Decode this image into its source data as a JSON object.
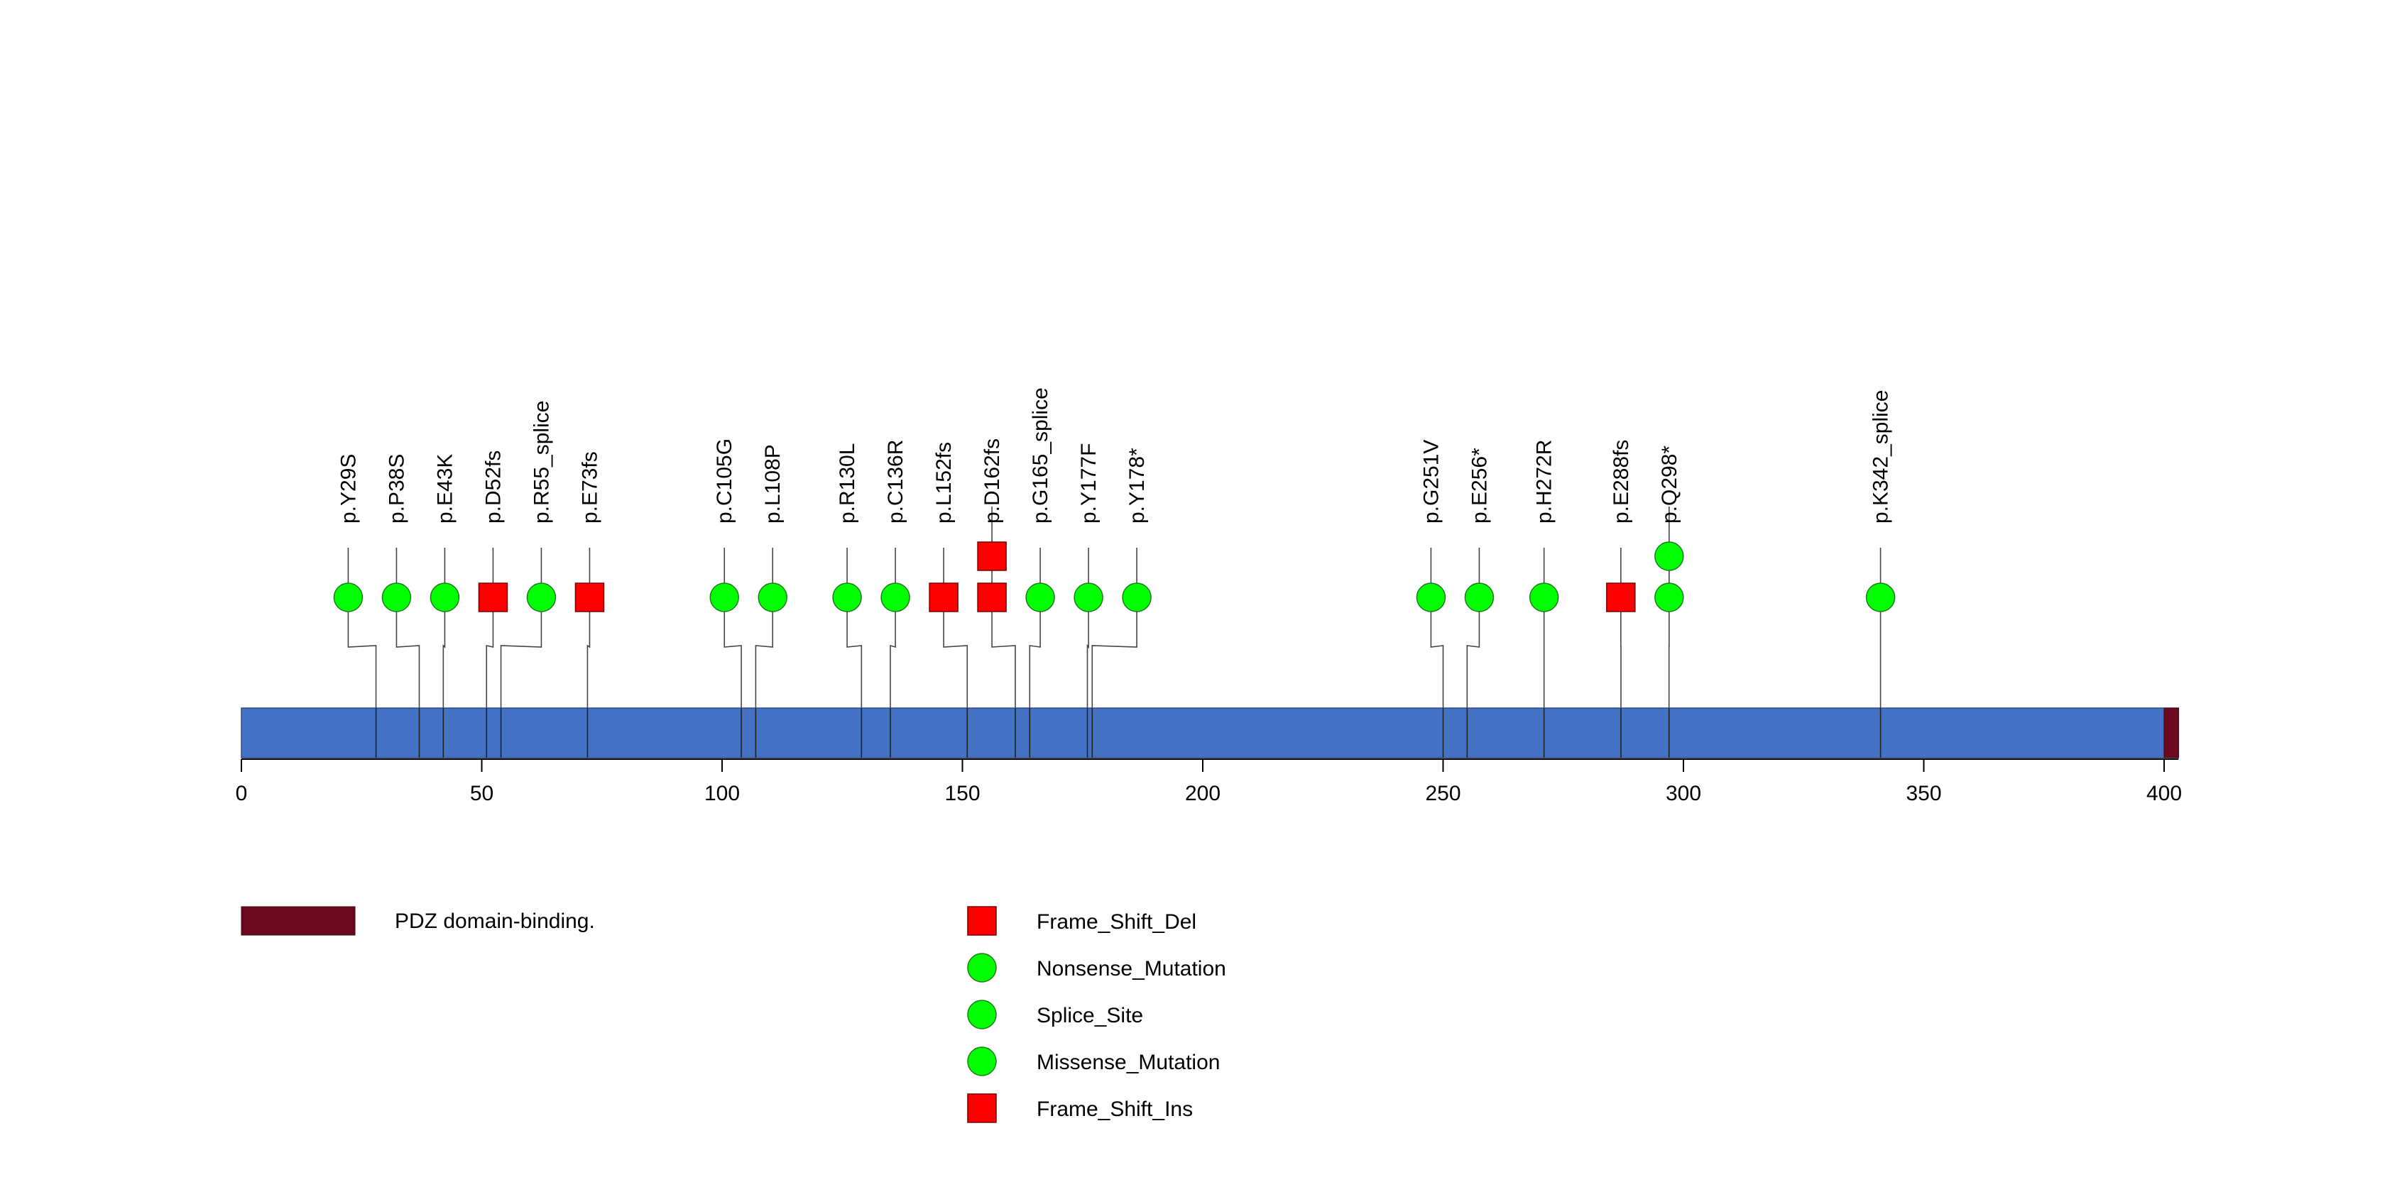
{
  "chart_data": {
    "type": "lollipop",
    "protein_length": 403,
    "axis": {
      "min": 0,
      "max": 403,
      "ticks": [
        {
          "value": 0,
          "label": "0"
        },
        {
          "value": 50,
          "label": "50"
        },
        {
          "value": 100,
          "label": "100"
        },
        {
          "value": 150,
          "label": "150"
        },
        {
          "value": 200,
          "label": "200"
        },
        {
          "value": 250,
          "label": "250"
        },
        {
          "value": 300,
          "label": "300"
        },
        {
          "value": 350,
          "label": "350"
        },
        {
          "value": 400,
          "label": "400"
        }
      ]
    },
    "domains": [
      {
        "name": "PDZ domain-binding.",
        "start": 400,
        "end": 403,
        "color": "#6b0a1f"
      }
    ],
    "mutations": [
      {
        "label": "p.Y29S",
        "pos": 28,
        "types": [
          "Missense_Mutation"
        ]
      },
      {
        "label": "p.P38S",
        "pos": 37,
        "types": [
          "Missense_Mutation"
        ]
      },
      {
        "label": "p.E43K",
        "pos": 42,
        "types": [
          "Missense_Mutation"
        ]
      },
      {
        "label": "p.D52fs",
        "pos": 51,
        "types": [
          "Frame_Shift_Del"
        ]
      },
      {
        "label": "p.R55_splice",
        "pos": 54,
        "types": [
          "Splice_Site"
        ]
      },
      {
        "label": "p.E73fs",
        "pos": 72,
        "types": [
          "Frame_Shift_Del"
        ]
      },
      {
        "label": "p.C105G",
        "pos": 104,
        "types": [
          "Missense_Mutation"
        ]
      },
      {
        "label": "p.L108P",
        "pos": 107,
        "types": [
          "Missense_Mutation"
        ]
      },
      {
        "label": "p.R130L",
        "pos": 129,
        "types": [
          "Missense_Mutation"
        ]
      },
      {
        "label": "p.C136R",
        "pos": 135,
        "types": [
          "Missense_Mutation"
        ]
      },
      {
        "label": "p.L152fs",
        "pos": 151,
        "types": [
          "Frame_Shift_Del"
        ]
      },
      {
        "label": "p.D162fs",
        "pos": 161,
        "types": [
          "Frame_Shift_Del",
          "Frame_Shift_Ins"
        ]
      },
      {
        "label": "p.G165_splice",
        "pos": 164,
        "types": [
          "Splice_Site"
        ]
      },
      {
        "label": "p.Y177F",
        "pos": 176,
        "types": [
          "Missense_Mutation"
        ]
      },
      {
        "label": "p.Y178*",
        "pos": 177,
        "types": [
          "Nonsense_Mutation"
        ]
      },
      {
        "label": "p.G251V",
        "pos": 250,
        "types": [
          "Missense_Mutation"
        ]
      },
      {
        "label": "p.E256*",
        "pos": 255,
        "types": [
          "Nonsense_Mutation"
        ]
      },
      {
        "label": "p.H272R",
        "pos": 271,
        "types": [
          "Missense_Mutation"
        ]
      },
      {
        "label": "p.E288fs",
        "pos": 287,
        "types": [
          "Frame_Shift_Del"
        ]
      },
      {
        "label": "p.Q298*",
        "pos": 297,
        "types": [
          "Nonsense_Mutation",
          "Nonsense_Mutation"
        ]
      },
      {
        "label": "p.K342_splice",
        "pos": 341,
        "types": [
          "Splice_Site"
        ]
      }
    ],
    "legend": [
      {
        "label": "Frame_Shift_Del",
        "shape": "square",
        "color": "#ff0000"
      },
      {
        "label": "Nonsense_Mutation",
        "shape": "circle",
        "color": "#00ff00"
      },
      {
        "label": "Splice_Site",
        "shape": "circle",
        "color": "#00ff00"
      },
      {
        "label": "Missense_Mutation",
        "shape": "circle",
        "color": "#00ff00"
      },
      {
        "label": "Frame_Shift_Ins",
        "shape": "square",
        "color": "#ff0000"
      }
    ],
    "colors": {
      "protein_bar": "#4472c4",
      "square": "#ff0000",
      "circle": "#00ff00"
    }
  }
}
